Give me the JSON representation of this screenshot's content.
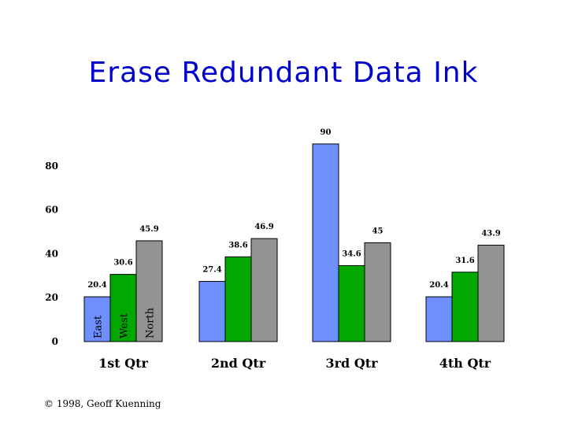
{
  "title": "Erase Redundant Data Ink",
  "footer": "© 1998, Geoff Kuenning",
  "chart_data": {
    "type": "bar",
    "title": "Erase Redundant Data Ink",
    "xlabel": "",
    "ylabel": "",
    "ylim": [
      0,
      90
    ],
    "yticks": [
      0,
      20,
      40,
      60,
      80
    ],
    "grid": false,
    "legend": "none",
    "categories": [
      "1st Qtr",
      "2nd Qtr",
      "3rd Qtr",
      "4th Qtr"
    ],
    "series": [
      {
        "name": "East",
        "color": "#6f8fff",
        "values": [
          20.4,
          27.4,
          90,
          20.4
        ]
      },
      {
        "name": "West",
        "color": "#00a800",
        "values": [
          30.6,
          38.6,
          34.6,
          31.6
        ]
      },
      {
        "name": "North",
        "color": "#939393",
        "values": [
          45.9,
          46.9,
          45,
          43.9
        ]
      }
    ]
  }
}
